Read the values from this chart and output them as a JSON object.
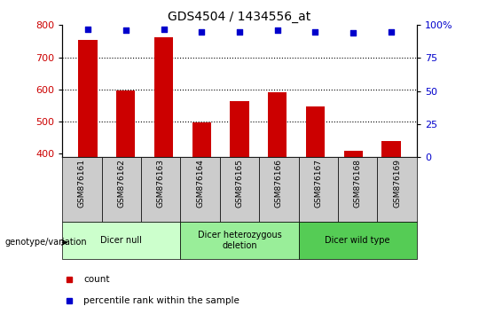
{
  "title": "GDS4504 / 1434556_at",
  "samples": [
    "GSM876161",
    "GSM876162",
    "GSM876163",
    "GSM876164",
    "GSM876165",
    "GSM876166",
    "GSM876167",
    "GSM876168",
    "GSM876169"
  ],
  "counts": [
    755,
    597,
    763,
    498,
    563,
    591,
    548,
    410,
    440
  ],
  "percentiles": [
    97,
    96,
    97,
    95,
    95,
    96,
    95,
    94,
    95
  ],
  "ylim_left": [
    390,
    800
  ],
  "ylim_right": [
    0,
    100
  ],
  "yticks_left": [
    400,
    500,
    600,
    700,
    800
  ],
  "yticks_right": [
    0,
    25,
    50,
    75,
    100
  ],
  "groups": [
    {
      "label": "Dicer null",
      "start": 0,
      "end": 3,
      "color": "#ccffcc"
    },
    {
      "label": "Dicer heterozygous\ndeletion",
      "start": 3,
      "end": 6,
      "color": "#99ee99"
    },
    {
      "label": "Dicer wild type",
      "start": 6,
      "end": 9,
      "color": "#55cc55"
    }
  ],
  "bar_color": "#cc0000",
  "dot_color": "#0000cc",
  "grid_color": "#000000",
  "bg_color": "#ffffff",
  "tick_label_color_left": "#cc0000",
  "tick_label_color_right": "#0000cc",
  "sample_bg_color": "#cccccc",
  "genotype_label": "genotype/variation"
}
